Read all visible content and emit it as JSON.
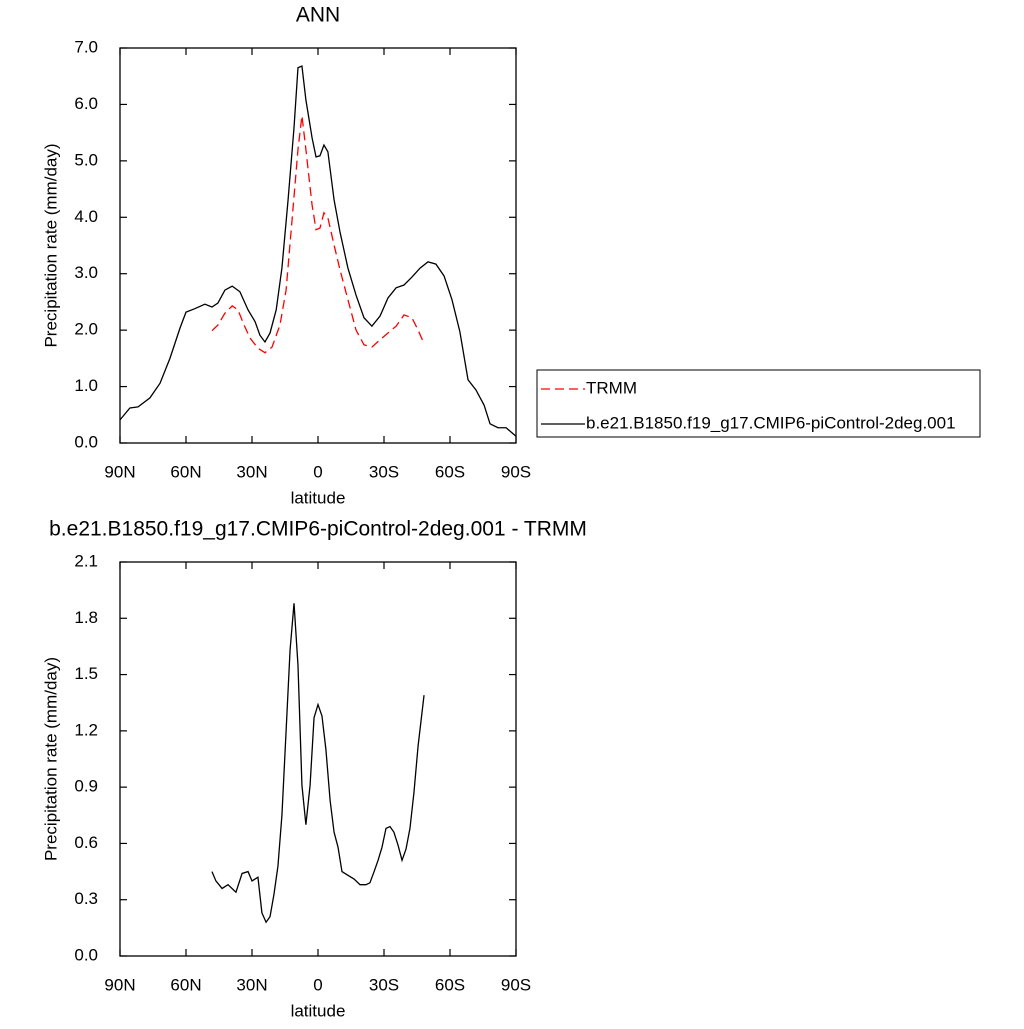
{
  "chart_data": [
    {
      "type": "line",
      "title": "ANN",
      "xlabel": "latitude",
      "ylabel": "Precipitation rate (mm/day)",
      "xlim": [
        90,
        -90
      ],
      "xticks": [
        {
          "value": 90,
          "label": "90N"
        },
        {
          "value": 60,
          "label": "60N"
        },
        {
          "value": 30,
          "label": "30N"
        },
        0,
        {
          "value": -30,
          "label": "30S"
        },
        {
          "value": -60,
          "label": "60S"
        },
        {
          "value": -90,
          "label": "90S"
        }
      ],
      "ylim": [
        0,
        7
      ],
      "yticks": [
        {
          "value": 0,
          "label": "0.0"
        },
        {
          "value": 1,
          "label": "1.0"
        },
        {
          "value": 2,
          "label": "2.0"
        },
        {
          "value": 3,
          "label": "3.0"
        },
        {
          "value": 4,
          "label": "4.0"
        },
        {
          "value": 5,
          "label": "5.0"
        },
        {
          "value": 6,
          "label": "6.0"
        },
        {
          "value": 7,
          "label": "7.0"
        }
      ],
      "legend": "right",
      "series": [
        {
          "name": "TRMM",
          "color": "#ff0000",
          "dash": "dashed",
          "x": [
            48.2,
            45.5,
            42.3,
            39,
            36.4,
            33.6,
            30.9,
            27.3,
            24.1,
            20.9,
            17.3,
            14.5,
            11.8,
            9.1,
            7.3,
            5.5,
            2.7,
            0.9,
            -0.9,
            -2.7,
            -4.5,
            -7.3,
            -10,
            -13.6,
            -17.3,
            -20.9,
            -24.5,
            -28.2,
            -31.8,
            -35.5,
            -39.1,
            -42.7,
            -45.5,
            -48.2
          ],
          "values": [
            1.99,
            2.09,
            2.3,
            2.43,
            2.36,
            2.09,
            1.86,
            1.68,
            1.6,
            1.7,
            2.09,
            2.71,
            3.95,
            5.2,
            5.8,
            5.2,
            4.22,
            3.78,
            3.81,
            4.08,
            3.99,
            3.51,
            3.07,
            2.54,
            2.0,
            1.74,
            1.7,
            1.83,
            1.95,
            2.07,
            2.27,
            2.22,
            2.0,
            1.76
          ]
        },
        {
          "name": "b.e21.B1850.f19_g17.CMIP6-piControl-2deg.001",
          "color": "#000000",
          "dash": "solid",
          "x": [
            90,
            85.5,
            81.8,
            76.4,
            71.8,
            67.3,
            62.7,
            60,
            56,
            51.4,
            48.2,
            45.5,
            42.3,
            39,
            35.5,
            31.8,
            28.6,
            26.4,
            24.1,
            21.8,
            19,
            16.4,
            13.6,
            10.9,
            9.1,
            7.3,
            5.5,
            2.7,
            0.9,
            -0.9,
            -2.7,
            -4.5,
            -7.3,
            -10,
            -13.6,
            -17.3,
            -20.9,
            -24.5,
            -28.2,
            -31.8,
            -35.5,
            -39.1,
            -42.7,
            -46.4,
            -50,
            -53.6,
            -57.3,
            -60.9,
            -64.5,
            -68.2,
            -71.8,
            -75.5,
            -78.2,
            -81.8,
            -85.5,
            -90
          ],
          "values": [
            0.41,
            0.62,
            0.64,
            0.8,
            1.06,
            1.5,
            2.04,
            2.32,
            2.38,
            2.46,
            2.41,
            2.48,
            2.71,
            2.78,
            2.68,
            2.36,
            2.15,
            1.91,
            1.79,
            1.95,
            2.36,
            3.1,
            4.31,
            5.59,
            6.65,
            6.68,
            6.08,
            5.41,
            5.07,
            5.09,
            5.28,
            5.16,
            4.31,
            3.74,
            3.1,
            2.62,
            2.22,
            2.07,
            2.25,
            2.57,
            2.75,
            2.8,
            2.94,
            3.1,
            3.21,
            3.17,
            2.96,
            2.54,
            1.97,
            1.12,
            0.94,
            0.67,
            0.34,
            0.27,
            0.27,
            0.12
          ]
        }
      ]
    },
    {
      "type": "line",
      "title": "b.e21.B1850.f19_g17.CMIP6-piControl-2deg.001 - TRMM",
      "xlabel": "latitude",
      "ylabel": "Precipitation rate (mm/day)",
      "xlim": [
        90,
        -90
      ],
      "xticks": [
        {
          "value": 90,
          "label": "90N"
        },
        {
          "value": 60,
          "label": "60N"
        },
        {
          "value": 30,
          "label": "30N"
        },
        0,
        {
          "value": -30,
          "label": "30S"
        },
        {
          "value": -60,
          "label": "60S"
        },
        {
          "value": -90,
          "label": "90S"
        }
      ],
      "ylim": [
        0,
        2.1
      ],
      "yticks": [
        {
          "value": 0,
          "label": "0.0"
        },
        0.3,
        0.6,
        0.9,
        1.2,
        1.5,
        1.8,
        2.1
      ],
      "series": [
        {
          "color": "#000000",
          "dash": "solid",
          "x": [
            48.2,
            46.4,
            43.6,
            40.9,
            37.3,
            34.5,
            31.8,
            30,
            27.3,
            25.5,
            23.6,
            21.8,
            20,
            18.2,
            16.4,
            14.5,
            12.7,
            10.9,
            9.1,
            7.3,
            5.5,
            3.6,
            1.8,
            0,
            -1.8,
            -3.6,
            -5.5,
            -7.3,
            -9.1,
            -10.9,
            -13.6,
            -16.4,
            -19.1,
            -21.8,
            -23.6,
            -25.5,
            -27.3,
            -29.1,
            -30.9,
            -32.7,
            -34.5,
            -36.4,
            -38.2,
            -40,
            -41.8,
            -43.6,
            -45.5,
            -48.2
          ],
          "values": [
            0.45,
            0.4,
            0.36,
            0.38,
            0.34,
            0.44,
            0.45,
            0.4,
            0.42,
            0.23,
            0.18,
            0.21,
            0.33,
            0.48,
            0.75,
            1.2,
            1.63,
            1.88,
            1.55,
            0.91,
            0.7,
            0.91,
            1.27,
            1.34,
            1.28,
            1.1,
            0.83,
            0.66,
            0.58,
            0.45,
            0.43,
            0.41,
            0.38,
            0.38,
            0.39,
            0.45,
            0.51,
            0.58,
            0.68,
            0.69,
            0.66,
            0.59,
            0.51,
            0.57,
            0.68,
            0.87,
            1.12,
            1.39
          ]
        }
      ]
    }
  ]
}
